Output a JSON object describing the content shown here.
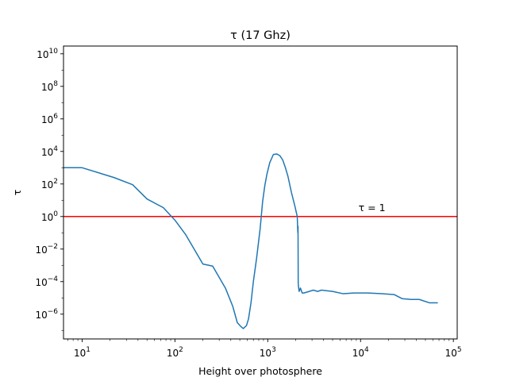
{
  "chart_data": {
    "type": "line",
    "title": "τ (17 Ghz)",
    "xlabel": "Height over photosphere",
    "ylabel": "τ",
    "xscale": "log",
    "yscale": "log",
    "xlim": [
      6.3,
      110000
    ],
    "ylim": [
      3e-08,
      30000000000.0
    ],
    "x_ticks": [
      {
        "base": "10",
        "exp": "1",
        "value": 10
      },
      {
        "base": "10",
        "exp": "2",
        "value": 100
      },
      {
        "base": "10",
        "exp": "3",
        "value": 1000
      },
      {
        "base": "10",
        "exp": "4",
        "value": 10000
      },
      {
        "base": "10",
        "exp": "5",
        "value": 100000
      }
    ],
    "y_ticks": [
      {
        "base": "10",
        "exp": "10",
        "value": 10000000000.0
      },
      {
        "base": "10",
        "exp": "8",
        "value": 100000000.0
      },
      {
        "base": "10",
        "exp": "6",
        "value": 1000000.0
      },
      {
        "base": "10",
        "exp": "4",
        "value": 10000.0
      },
      {
        "base": "10",
        "exp": "2",
        "value": 100.0
      },
      {
        "base": "10",
        "exp": "0",
        "value": 1
      },
      {
        "base": "10",
        "exp": "−2",
        "value": 0.01
      },
      {
        "base": "10",
        "exp": "−4",
        "value": 0.0001
      },
      {
        "base": "10",
        "exp": "−6",
        "value": 1e-06
      }
    ],
    "grid": false,
    "series": [
      {
        "color": "#1f77b4",
        "x": [
          6.3,
          10,
          22,
          35,
          50,
          75,
          100,
          130,
          200,
          255,
          350,
          420,
          470,
          510,
          545,
          590,
          620,
          660,
          700,
          760,
          830,
          880,
          930,
          980,
          1050,
          1150,
          1250,
          1350,
          1450,
          1550,
          1650,
          1800,
          1950,
          2080,
          2100,
          2110,
          2120,
          2130,
          2150,
          2180,
          2250,
          2350,
          2450,
          2600,
          2800,
          3100,
          3450,
          3800,
          4200,
          5000,
          6500,
          8500,
          12000,
          17000,
          23000,
          28000,
          35000,
          43000,
          55000,
          68000
        ],
        "y": [
          1000,
          1000,
          250,
          90,
          12,
          3.5,
          0.6,
          0.08,
          0.0012,
          0.0009,
          4e-05,
          3e-06,
          3e-07,
          1.8e-07,
          1.3e-07,
          2e-07,
          5e-07,
          5e-06,
          0.0001,
          0.003,
          0.2,
          8,
          80,
          400,
          2000,
          6500,
          7000,
          5500,
          3000,
          1000,
          300,
          30,
          5,
          1,
          0.2,
          0.1,
          0.25,
          8e-05,
          4.5e-05,
          2.5e-05,
          4e-05,
          2e-05,
          2e-05,
          2.2e-05,
          2.5e-05,
          3e-05,
          2.5e-05,
          3e-05,
          2.8e-05,
          2.5e-05,
          1.8e-05,
          2e-05,
          2e-05,
          1.8e-05,
          1.6e-05,
          9e-06,
          8e-06,
          8e-06,
          5e-06,
          5e-06
        ]
      }
    ],
    "hlines": [
      {
        "y": 1,
        "color": "#ff0000"
      }
    ],
    "annotations": [
      {
        "text": "τ = 1",
        "x": 9500,
        "y": 2.2
      }
    ]
  }
}
